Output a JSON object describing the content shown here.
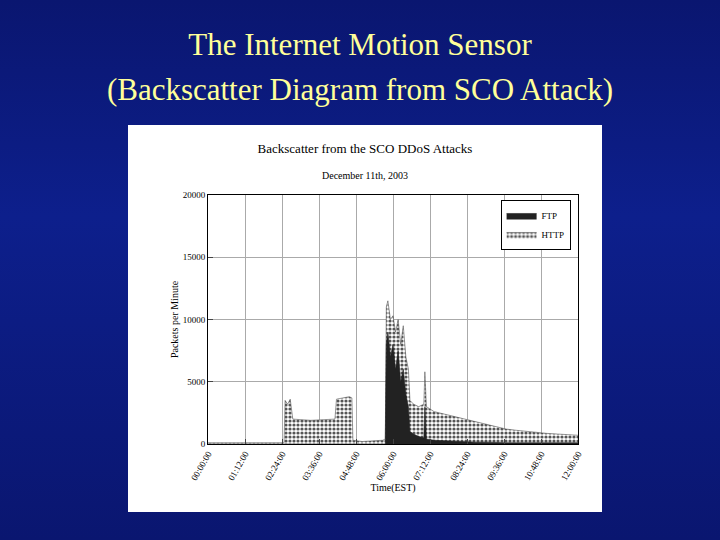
{
  "heading": [
    "The Internet Motion Sensor",
    "(Backscatter Diagram from SCO Attack)"
  ],
  "chart_data": {
    "type": "area",
    "title": "Backscatter from the SCO DDoS Attacks",
    "subtitle": "December 11th, 2003",
    "x_label": "Time(EST)",
    "y_label": "Packets per Minute",
    "x": [
      0,
      140,
      148,
      150,
      155,
      160,
      165,
      200,
      240,
      247,
      250,
      260,
      275,
      280,
      282,
      300,
      340,
      345,
      347,
      350,
      355,
      360,
      365,
      370,
      375,
      380,
      385,
      390,
      393,
      400,
      410,
      420,
      422,
      425,
      440,
      460,
      480,
      500,
      520,
      540,
      560,
      580,
      600,
      620,
      640,
      660,
      680,
      700,
      720
    ],
    "series": [
      {
        "name": "HTTP",
        "color": "#555555",
        "values": [
          100,
          100,
          100,
          3500,
          3200,
          3600,
          2000,
          1900,
          2000,
          2000,
          3600,
          3700,
          3800,
          3700,
          300,
          200,
          300,
          400,
          11000,
          11500,
          10000,
          10300,
          9000,
          10000,
          8000,
          9500,
          7000,
          6000,
          3500,
          3200,
          3000,
          3200,
          5800,
          3000,
          2600,
          2400,
          2200,
          2000,
          1800,
          1600,
          1400,
          1200,
          1100,
          1000,
          900,
          850,
          800,
          750,
          700
        ]
      },
      {
        "name": "FTP",
        "color": "#222222",
        "values": [
          0,
          0,
          0,
          0,
          0,
          0,
          0,
          0,
          0,
          0,
          0,
          0,
          0,
          0,
          0,
          0,
          0,
          0,
          8000,
          9000,
          7000,
          8000,
          6000,
          7500,
          5000,
          6000,
          4000,
          3000,
          1000,
          800,
          600,
          500,
          3000,
          400,
          300,
          250,
          200,
          200,
          150,
          150,
          100,
          100,
          100,
          100,
          100,
          100,
          100,
          100,
          100
        ]
      }
    ],
    "xlim": [
      0,
      720
    ],
    "xticks": [
      {
        "value": 0,
        "label": "00:00:00"
      },
      {
        "value": 72,
        "label": "01:12:00"
      },
      {
        "value": 144,
        "label": "02:24:00"
      },
      {
        "value": 216,
        "label": "03:36:00"
      },
      {
        "value": 288,
        "label": "04:48:00"
      },
      {
        "value": 360,
        "label": "06:00:00"
      },
      {
        "value": 432,
        "label": "07:12:00"
      },
      {
        "value": 504,
        "label": "08:24:00"
      },
      {
        "value": 576,
        "label": "09:36:00"
      },
      {
        "value": 648,
        "label": "10:48:00"
      },
      {
        "value": 720,
        "label": "12:00:00"
      }
    ],
    "ylim": [
      0,
      20000
    ],
    "yticks": [
      0,
      5000,
      10000,
      15000,
      20000
    ],
    "grid": true,
    "legend": "top right"
  }
}
